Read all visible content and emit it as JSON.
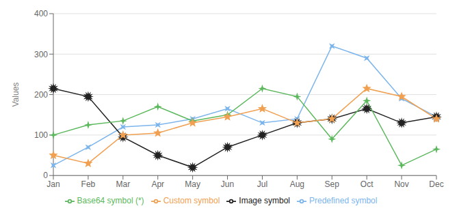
{
  "chart_data": {
    "type": "line",
    "categories": [
      "Jan",
      "Feb",
      "Mar",
      "Apr",
      "May",
      "Jun",
      "Jul",
      "Aug",
      "Sep",
      "Oct",
      "Nov",
      "Dec"
    ],
    "series": [
      {
        "name": "Predefined symbol",
        "color": "#7cb5ec",
        "marker": "star4_rotated",
        "values": [
          25,
          70,
          120,
          125,
          140,
          165,
          130,
          140,
          320,
          290,
          190,
          145
        ]
      },
      {
        "name": "Image symbol",
        "color": "#222222",
        "marker": "star12",
        "values": [
          215,
          195,
          95,
          50,
          20,
          70,
          100,
          130,
          140,
          165,
          130,
          145
        ]
      },
      {
        "name": "Base64 symbol (*)",
        "color": "#5cb85c",
        "marker": "star4",
        "values": [
          100,
          125,
          135,
          170,
          135,
          150,
          215,
          195,
          90,
          185,
          25,
          65
        ]
      },
      {
        "name": "Custom symbol",
        "color": "#f0a050",
        "marker": "star",
        "values": [
          50,
          30,
          100,
          105,
          130,
          145,
          165,
          130,
          140,
          215,
          195,
          140
        ]
      }
    ],
    "ylabel": "Values",
    "ylim": [
      0,
      400
    ],
    "yticks": [
      0,
      100,
      200,
      300,
      400
    ],
    "grid": true,
    "legend": "bottom"
  }
}
